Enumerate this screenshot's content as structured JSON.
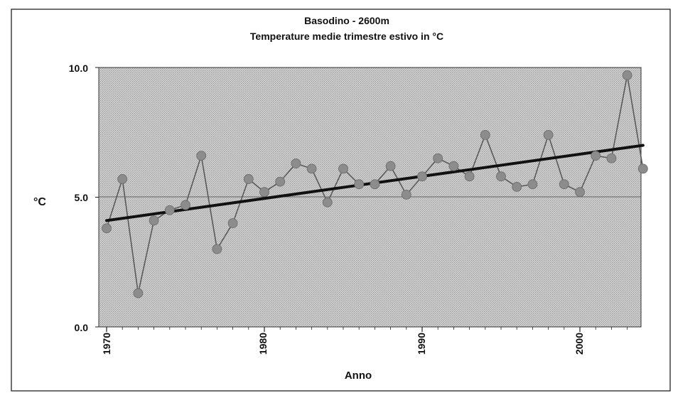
{
  "chart_data": {
    "type": "line",
    "title": "Basodino - 2600m",
    "subtitle": "Temperature medie trimestre estivo  in °C",
    "xlabel": "Anno",
    "ylabel": "°C",
    "xlim": [
      1970,
      2004
    ],
    "ylim": [
      0,
      10
    ],
    "x_ticks": [
      "1970",
      "1980",
      "1990",
      "2000"
    ],
    "y_ticks": [
      "0.0",
      "5.0",
      "10.0"
    ],
    "grid": "horizontal at 5.0",
    "legend": "none",
    "series": [
      {
        "x": [
          1970,
          1971,
          1972,
          1973,
          1974,
          1975,
          1976,
          1977,
          1978,
          1979,
          1980,
          1981,
          1982,
          1983,
          1984,
          1985,
          1986,
          1987,
          1988,
          1989,
          1990,
          1991,
          1992,
          1993,
          1994,
          1995,
          1996,
          1997,
          1998,
          1999,
          2000,
          2001,
          2002,
          2003,
          2004
        ],
        "values": [
          3.8,
          5.7,
          1.3,
          4.1,
          4.5,
          4.7,
          6.6,
          3.0,
          4.0,
          5.7,
          5.2,
          5.6,
          6.3,
          6.1,
          4.8,
          6.1,
          5.5,
          5.5,
          6.2,
          5.1,
          5.8,
          6.5,
          6.2,
          5.8,
          7.4,
          5.8,
          5.4,
          5.5,
          7.4,
          5.5,
          5.2,
          6.6,
          6.5,
          9.7,
          6.1
        ]
      }
    ],
    "trend_line": {
      "x": [
        1970,
        2004
      ],
      "values": [
        4.1,
        7.0
      ]
    },
    "colors": {
      "plot_background": "#c4c4c4",
      "marker": "#8c8c8c",
      "line": "#5a5a5a",
      "trend": "#111111"
    }
  }
}
